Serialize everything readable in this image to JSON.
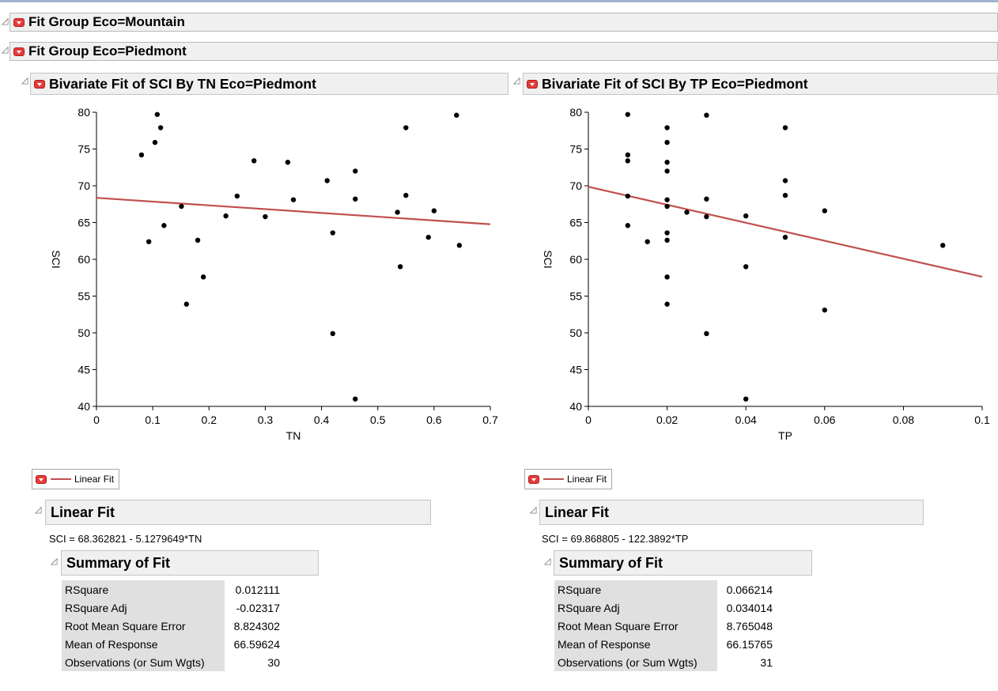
{
  "groups": {
    "mountain_title": "Fit Group Eco=Mountain",
    "piedmont_title": "Fit Group Eco=Piedmont"
  },
  "disclosure_glyph": "◿",
  "colors": {
    "fit_line": "#c0504d",
    "red_button": "#e33d3d",
    "header_bg": "#f0f0f0"
  },
  "panels": [
    {
      "title": "Bivariate Fit of SCI By TN Eco=Piedmont",
      "legend_label": "Linear Fit",
      "fit_title": "Linear Fit",
      "equation": "SCI = 68.362821 - 5.1279649*TN",
      "summary_title": "Summary of Fit",
      "summary": [
        {
          "label": "RSquare",
          "value": "0.012111"
        },
        {
          "label": "RSquare Adj",
          "value": "-0.02317"
        },
        {
          "label": "Root Mean Square Error",
          "value": "8.824302"
        },
        {
          "label": "Mean of Response",
          "value": "66.59624"
        },
        {
          "label": "Observations (or Sum Wgts)",
          "value": "30"
        }
      ]
    },
    {
      "title": "Bivariate Fit of SCI By TP Eco=Piedmont",
      "legend_label": "Linear Fit",
      "fit_title": "Linear Fit",
      "equation": "SCI = 69.868805 - 122.3892*TP",
      "summary_title": "Summary of Fit",
      "summary": [
        {
          "label": "RSquare",
          "value": "0.066214"
        },
        {
          "label": "RSquare Adj",
          "value": "0.034014"
        },
        {
          "label": "Root Mean Square Error",
          "value": "8.765048"
        },
        {
          "label": "Mean of Response",
          "value": "66.15765"
        },
        {
          "label": "Observations (or Sum Wgts)",
          "value": "31"
        }
      ]
    }
  ],
  "chart_data": [
    {
      "type": "scatter",
      "xlabel": "TN",
      "ylabel": "SCI",
      "xlim": [
        0,
        0.7
      ],
      "ylim": [
        40,
        80
      ],
      "xticks": [
        0,
        0.1,
        0.2,
        0.3,
        0.4,
        0.5,
        0.6,
        0.7
      ],
      "yticks": [
        40,
        45,
        50,
        55,
        60,
        65,
        70,
        75,
        80
      ],
      "points": [
        [
          0.08,
          74.2
        ],
        [
          0.093,
          62.4
        ],
        [
          0.104,
          75.9
        ],
        [
          0.108,
          79.7
        ],
        [
          0.114,
          77.9
        ],
        [
          0.12,
          64.6
        ],
        [
          0.151,
          67.2
        ],
        [
          0.16,
          53.9
        ],
        [
          0.18,
          62.6
        ],
        [
          0.19,
          57.6
        ],
        [
          0.23,
          65.9
        ],
        [
          0.25,
          68.6
        ],
        [
          0.28,
          73.4
        ],
        [
          0.3,
          65.8
        ],
        [
          0.34,
          73.2
        ],
        [
          0.35,
          68.1
        ],
        [
          0.41,
          70.7
        ],
        [
          0.42,
          63.6
        ],
        [
          0.42,
          49.9
        ],
        [
          0.46,
          72.0
        ],
        [
          0.46,
          68.2
        ],
        [
          0.46,
          41.0
        ],
        [
          0.535,
          66.4
        ],
        [
          0.54,
          59.0
        ],
        [
          0.55,
          77.9
        ],
        [
          0.55,
          68.7
        ],
        [
          0.59,
          63.0
        ],
        [
          0.6,
          66.6
        ],
        [
          0.64,
          79.6
        ],
        [
          0.645,
          61.9
        ]
      ],
      "fit": {
        "intercept": 68.362821,
        "slope": -5.1279649
      }
    },
    {
      "type": "scatter",
      "xlabel": "TP",
      "ylabel": "SCI",
      "xlim": [
        0,
        0.1
      ],
      "ylim": [
        40,
        80
      ],
      "xticks": [
        0,
        0.02,
        0.04,
        0.06,
        0.08,
        0.1
      ],
      "yticks": [
        40,
        45,
        50,
        55,
        60,
        65,
        70,
        75,
        80
      ],
      "points": [
        [
          0.01,
          79.7
        ],
        [
          0.01,
          74.2
        ],
        [
          0.01,
          73.4
        ],
        [
          0.01,
          68.6
        ],
        [
          0.01,
          64.6
        ],
        [
          0.015,
          62.4
        ],
        [
          0.02,
          77.9
        ],
        [
          0.02,
          75.9
        ],
        [
          0.02,
          73.2
        ],
        [
          0.02,
          72.0
        ],
        [
          0.02,
          68.1
        ],
        [
          0.02,
          67.2
        ],
        [
          0.02,
          63.6
        ],
        [
          0.02,
          62.6
        ],
        [
          0.02,
          57.6
        ],
        [
          0.02,
          53.9
        ],
        [
          0.025,
          66.4
        ],
        [
          0.03,
          79.6
        ],
        [
          0.03,
          68.2
        ],
        [
          0.03,
          65.8
        ],
        [
          0.03,
          49.9
        ],
        [
          0.04,
          65.9
        ],
        [
          0.04,
          59.0
        ],
        [
          0.04,
          41.0
        ],
        [
          0.05,
          77.9
        ],
        [
          0.05,
          70.7
        ],
        [
          0.05,
          68.7
        ],
        [
          0.05,
          63.0
        ],
        [
          0.06,
          66.6
        ],
        [
          0.06,
          53.1
        ],
        [
          0.09,
          61.9
        ]
      ],
      "fit": {
        "intercept": 69.868805,
        "slope": -122.3892
      }
    }
  ]
}
